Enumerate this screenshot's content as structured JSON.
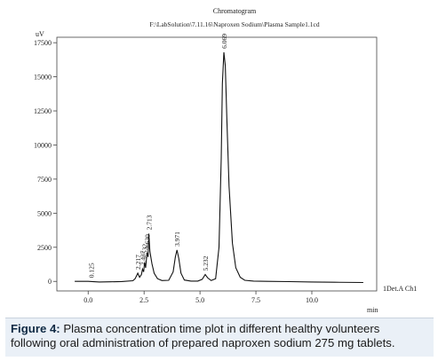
{
  "chart_data": {
    "type": "line",
    "title": "Chromatogram",
    "subtitle": "F:\\LabSolution\\7.11.16\\Naproxen Sodium\\Plasma Sample1.1cd",
    "ylabel": "uV",
    "xlabel": "min",
    "xlim": [
      -1.4,
      12.9
    ],
    "ylim": [
      -700,
      17900
    ],
    "yticks": [
      0,
      2500,
      5000,
      7500,
      10000,
      12500,
      15000,
      17500
    ],
    "yticklabels": [
      "0",
      "2500",
      "5000",
      "7500",
      "10000",
      "12500",
      "15000",
      "17500"
    ],
    "xticks": [
      0,
      2.5,
      5,
      7.5,
      10
    ],
    "xticklabels": [
      "0.0",
      "2.5",
      "5.0",
      "7.5",
      "10.0"
    ],
    "channel_label": "1Det.A Ch1",
    "peaks": [
      {
        "rt": 0.125,
        "label": "0.125",
        "height": 0
      },
      {
        "rt": 2.22,
        "label": "2.217",
        "height": 600
      },
      {
        "rt": 2.43,
        "label": "2.437",
        "height": 900
      },
      {
        "rt": 2.52,
        "label": "2.532",
        "height": 1400
      },
      {
        "rt": 2.63,
        "label": "2.630",
        "height": 2100
      },
      {
        "rt": 2.713,
        "label": "2.713",
        "height": 3500
      },
      {
        "rt": 3.971,
        "label": "3.971",
        "height": 2300
      },
      {
        "rt": 5.232,
        "label": "5.232",
        "height": 500
      },
      {
        "rt": 6.069,
        "label": "6.069",
        "height": 16800
      }
    ],
    "series": [
      {
        "values_note": "",
        "x": [
          -0.6,
          0.0,
          0.5,
          1.0,
          1.5,
          2.0,
          2.1,
          2.22,
          2.3,
          2.38,
          2.43,
          2.48,
          2.52,
          2.57,
          2.63,
          2.68,
          2.713,
          2.76,
          2.85,
          2.95,
          3.1,
          3.3,
          3.6,
          3.8,
          3.9,
          3.971,
          4.05,
          4.15,
          4.3,
          4.6,
          4.9,
          5.1,
          5.232,
          5.35,
          5.5,
          5.7,
          5.85,
          5.95,
          6.0,
          6.069,
          6.13,
          6.2,
          6.3,
          6.45,
          6.6,
          6.8,
          7.0,
          7.4,
          8.0,
          9.0,
          10.0,
          11.0,
          12.3
        ],
        "y": [
          0,
          0,
          -40,
          -30,
          -10,
          50,
          200,
          600,
          300,
          500,
          900,
          700,
          1400,
          1000,
          2100,
          1800,
          3500,
          2200,
          1300,
          600,
          200,
          60,
          80,
          700,
          1800,
          2300,
          1700,
          600,
          100,
          20,
          20,
          150,
          500,
          250,
          60,
          200,
          2500,
          9000,
          14500,
          16800,
          15800,
          12000,
          7000,
          2800,
          1000,
          300,
          80,
          20,
          0,
          -20,
          -40,
          -60,
          -80
        ]
      }
    ]
  },
  "caption": {
    "bold": "Figure 4:",
    "text": " Plasma concentration time plot in different healthy volunteers following oral administration of prepared naproxen sodium 275 mg tablets."
  }
}
